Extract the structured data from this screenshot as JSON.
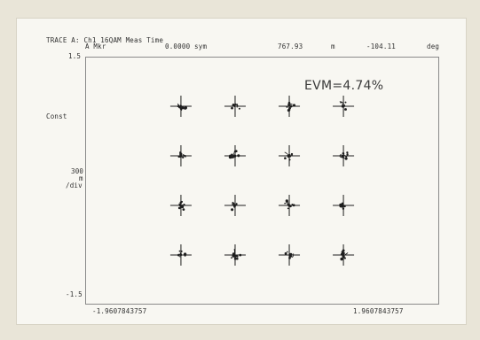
{
  "header": {
    "trace_title": "TRACE A: Ch1 16QAM Meas Time",
    "marker_label": "A Mkr",
    "marker_sym": "0.0000 sym",
    "marker_mag": "767.93",
    "marker_mag_unit": "m",
    "marker_phase": "-104.11",
    "marker_phase_unit": "deg"
  },
  "plot": {
    "y_top": "1.5",
    "y_bottom": "-1.5",
    "format_label": "Const",
    "scale_value": "300",
    "scale_unit": "m",
    "scale_per": "/div",
    "x_left": "-1.9607843757",
    "x_right": "1.9607843757",
    "evm_text": "EVM=4.74%"
  },
  "colors": {
    "background": "#e9e5d8",
    "panel": "#f8f7f2",
    "trace": "#1e1e1e",
    "text": "#303030"
  },
  "chart_data": {
    "type": "scatter",
    "title": "TRACE A: Ch1 16QAM Meas Time",
    "xlabel": "",
    "ylabel": "",
    "xlim": [
      -1.9607843757,
      1.9607843757
    ],
    "ylim": [
      -1.5,
      1.5
    ],
    "grid": false,
    "constellation_points": [
      {
        "i": -0.9,
        "q": 0.9
      },
      {
        "i": -0.3,
        "q": 0.9
      },
      {
        "i": 0.3,
        "q": 0.9
      },
      {
        "i": 0.9,
        "q": 0.9
      },
      {
        "i": -0.9,
        "q": 0.3
      },
      {
        "i": -0.3,
        "q": 0.3
      },
      {
        "i": 0.3,
        "q": 0.3
      },
      {
        "i": 0.9,
        "q": 0.3
      },
      {
        "i": -0.9,
        "q": -0.3
      },
      {
        "i": -0.3,
        "q": -0.3
      },
      {
        "i": 0.3,
        "q": -0.3
      },
      {
        "i": 0.9,
        "q": -0.3
      },
      {
        "i": -0.9,
        "q": -0.9
      },
      {
        "i": -0.3,
        "q": -0.9
      },
      {
        "i": 0.3,
        "q": -0.9
      },
      {
        "i": 0.9,
        "q": -0.9
      }
    ],
    "evm_percent": 4.74
  }
}
